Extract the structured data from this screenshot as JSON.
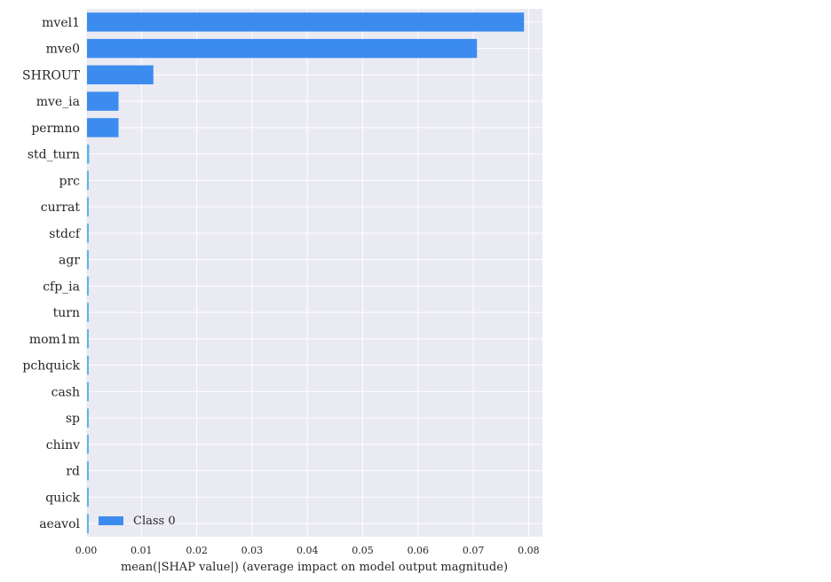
{
  "chart_data": {
    "type": "bar",
    "orientation": "horizontal",
    "categories": [
      "mvel1",
      "mve0",
      "SHROUT",
      "mve_ia",
      "permno",
      "std_turn",
      "prc",
      "currat",
      "stdcf",
      "agr",
      "cfp_ia",
      "turn",
      "mom1m",
      "pchquick",
      "cash",
      "sp",
      "chinv",
      "rd",
      "quick",
      "aeavol"
    ],
    "series": [
      {
        "name": "Class 0",
        "color": "#3c8cf0",
        "values": [
          0.079,
          0.0705,
          0.012,
          0.0057,
          0.0057,
          0.0004,
          0.00025,
          0.00022,
          0.0002,
          0.0002,
          0.00018,
          0.00018,
          0.00017,
          0.00016,
          0.00015,
          0.00014,
          0.00013,
          0.00012,
          0.00011,
          0.0001
        ]
      }
    ],
    "xlabel": "mean(|SHAP value|) (average impact on model output magnitude)",
    "xlim": [
      0,
      0.0825
    ],
    "xticks": [
      0,
      0.01,
      0.02,
      0.03,
      0.04,
      0.05,
      0.06,
      0.07,
      0.08
    ],
    "xtick_labels": [
      "0.00",
      "0.01",
      "0.02",
      "0.03",
      "0.04",
      "0.05",
      "0.06",
      "0.07",
      "0.08"
    ],
    "grid": true,
    "legend": "bottom-left",
    "background": "#eaeaf2",
    "small_bar_color": "#5ab4e6"
  }
}
